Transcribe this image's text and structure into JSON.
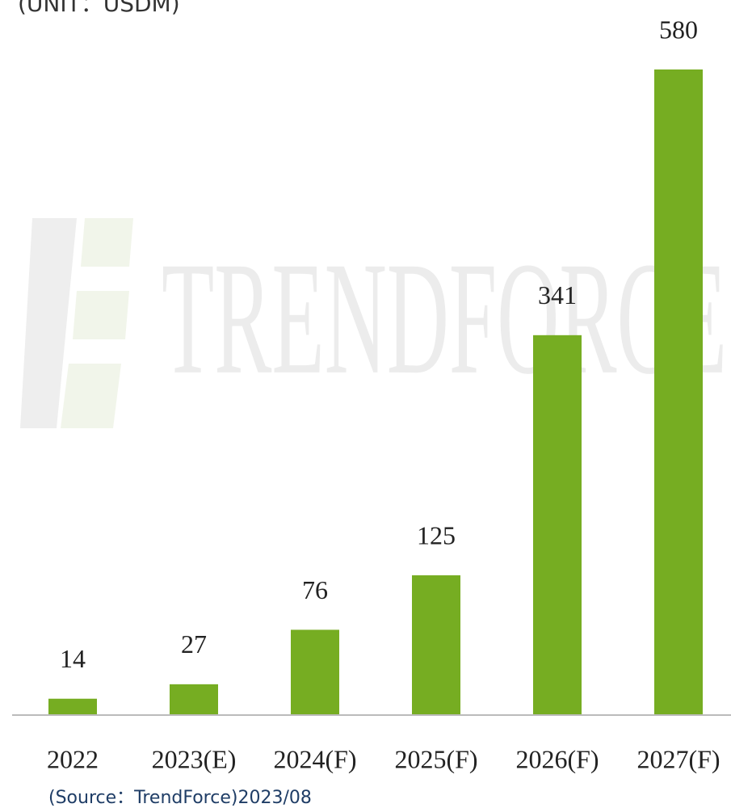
{
  "chart_data": {
    "type": "bar",
    "title": "(UNIT：USDM)",
    "categories": [
      "2022",
      "2023(E)",
      "2024(F)",
      "2025(F)",
      "2026(F)",
      "2027(F)"
    ],
    "values": [
      14,
      27,
      76,
      125,
      341,
      580
    ],
    "color": "#76ad22",
    "source": "(Source：TrendForce)2023/08",
    "watermark": "TRENDFORCE"
  }
}
